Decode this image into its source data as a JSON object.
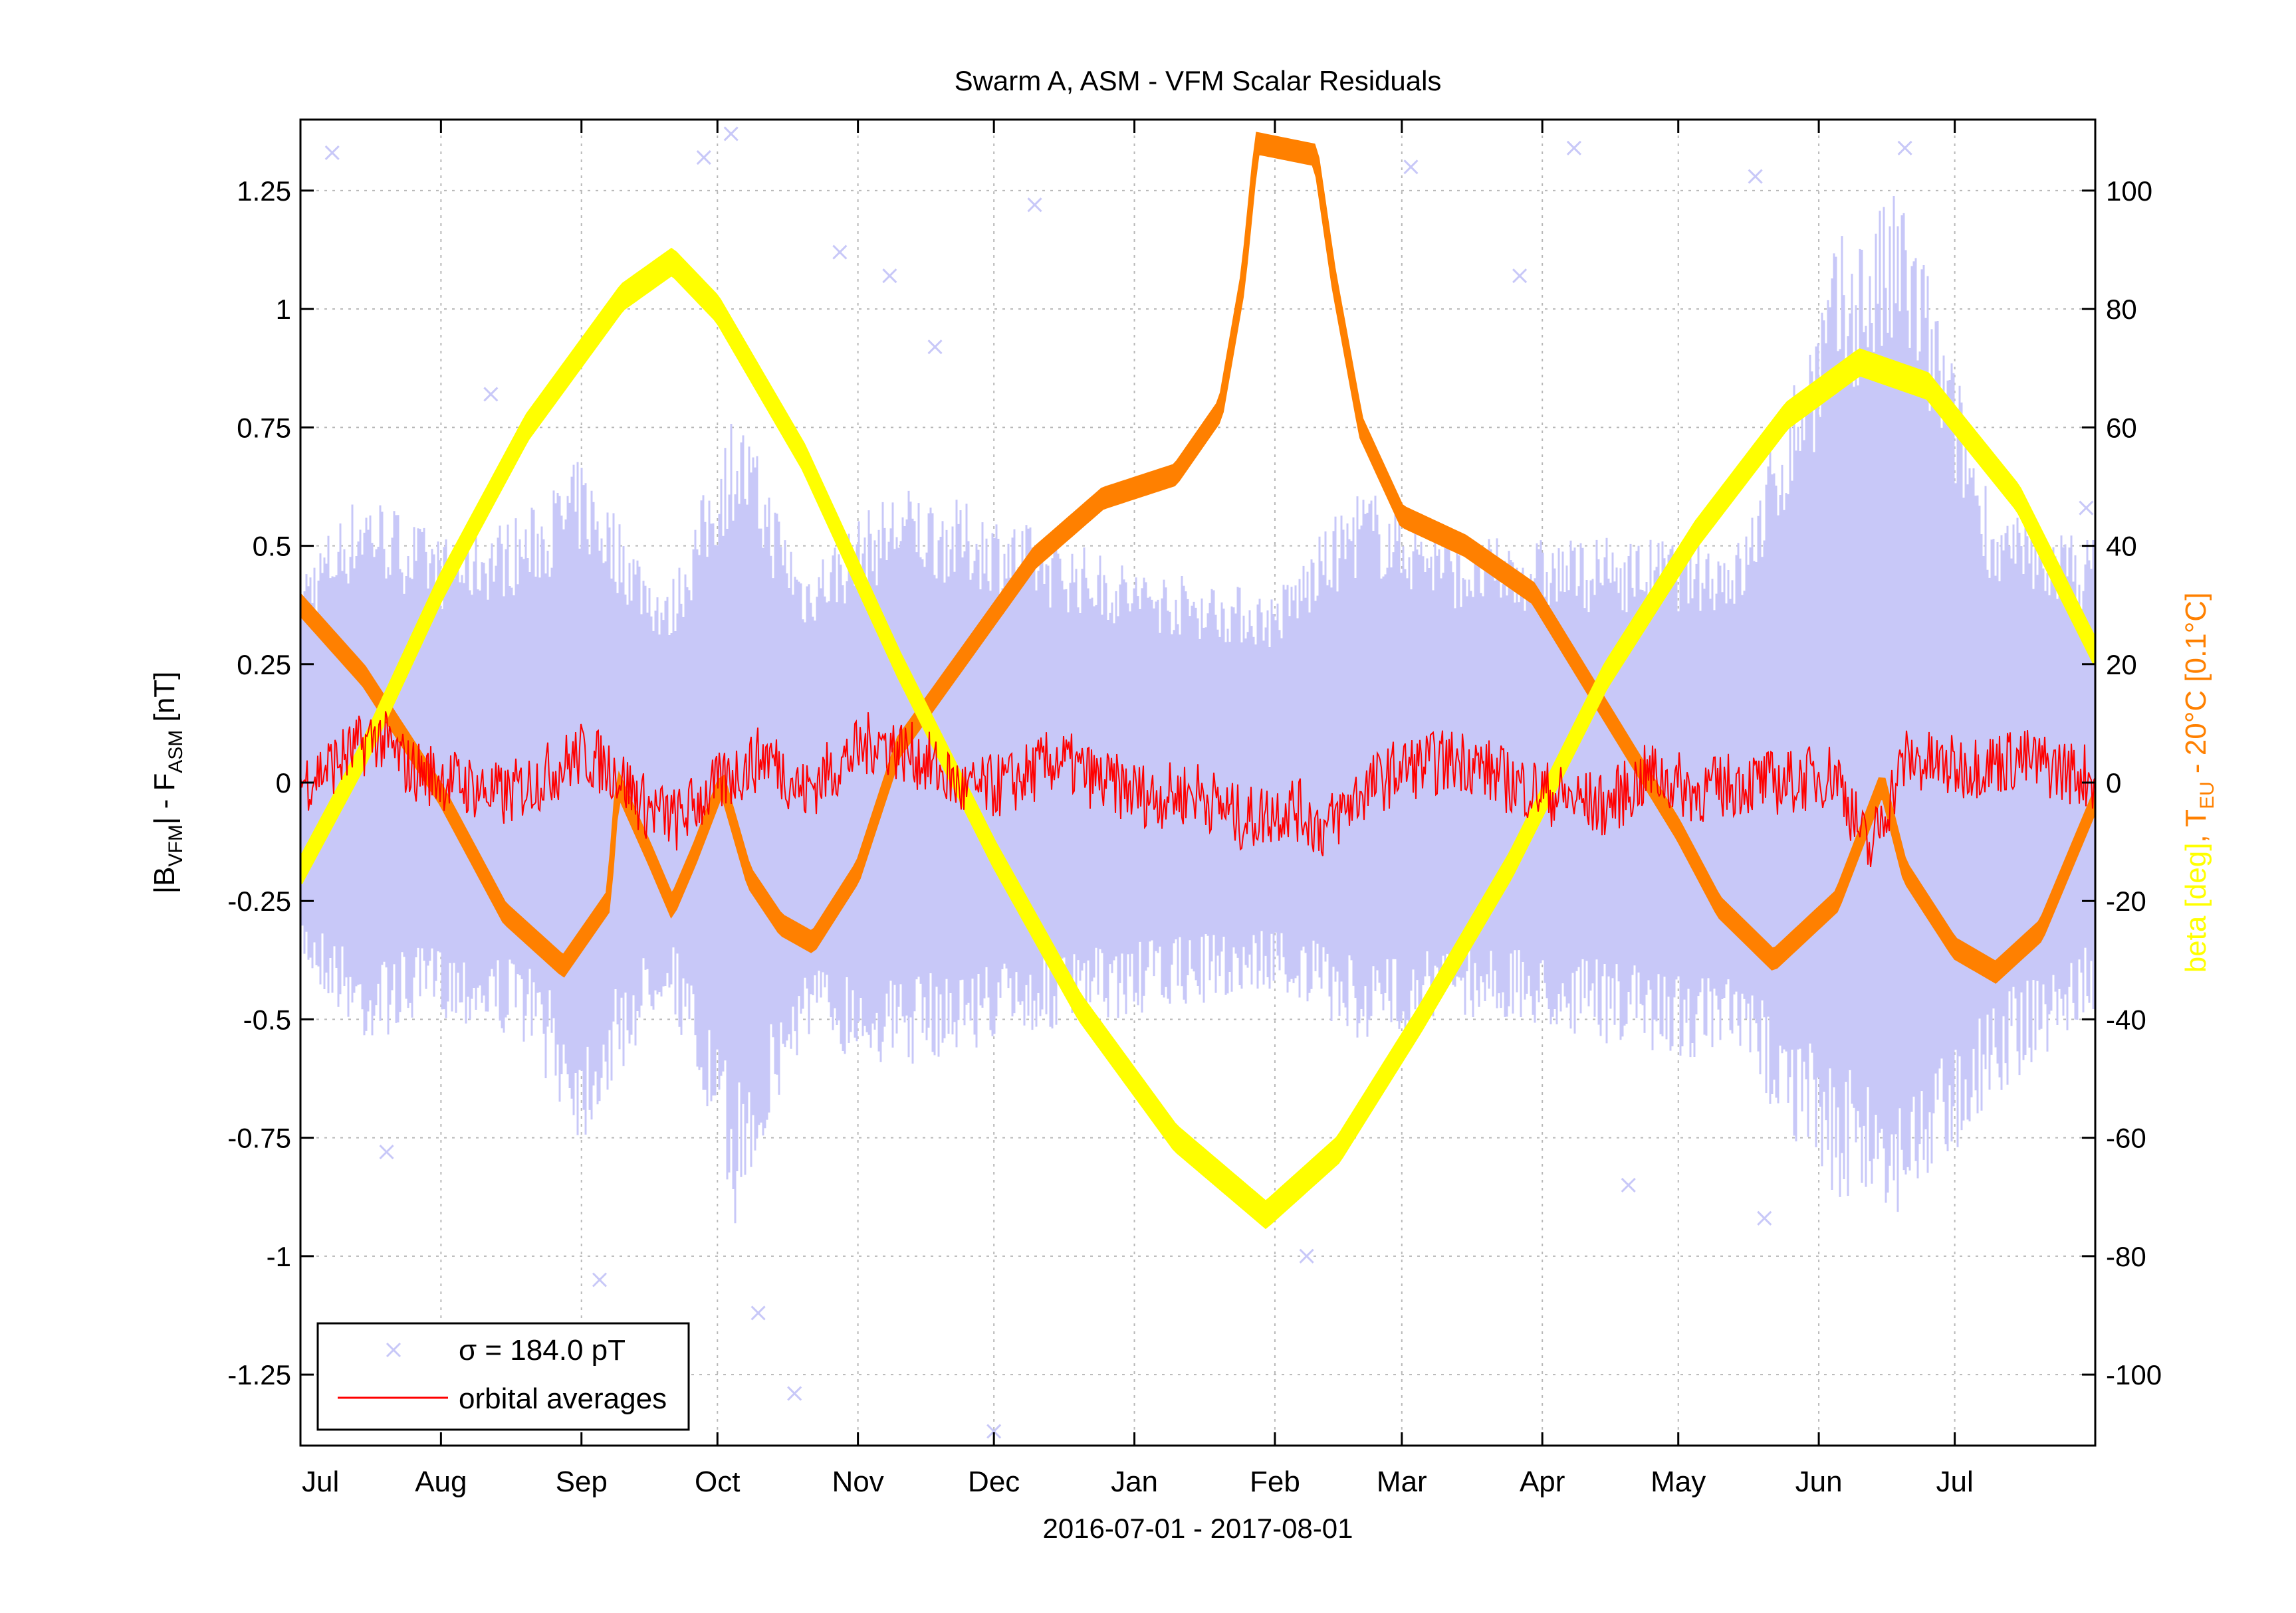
{
  "chart_data": {
    "type": "scatter",
    "title": "Swarm A, ASM - VFM Scalar Residuals",
    "xlabel": "2016-07-01 - 2017-08-01",
    "ylabel_left": "|B_VFM| - F_ASM [nT]",
    "ylabel_left_parts": {
      "main1": "|B",
      "sub1": "VFM",
      "main2": "| - F",
      "sub2": "ASM",
      "main3": " [nT]"
    },
    "ylabel_right_parts": {
      "beta": "beta [deg]",
      "sep": ", ",
      "t": "T",
      "tsub": "EU",
      "trest": " - 20°C [0.1°C]"
    },
    "x_range": [
      "2016-07-01",
      "2017-08-01"
    ],
    "x_ticks": [
      {
        "label": "Jul",
        "date": "2016-07-01"
      },
      {
        "label": "Aug",
        "date": "2016-08-01"
      },
      {
        "label": "Sep",
        "date": "2016-09-01"
      },
      {
        "label": "Oct",
        "date": "2016-10-01"
      },
      {
        "label": "Nov",
        "date": "2016-11-01"
      },
      {
        "label": "Dec",
        "date": "2016-12-01"
      },
      {
        "label": "Jan",
        "date": "2017-01-01"
      },
      {
        "label": "Feb",
        "date": "2017-02-01"
      },
      {
        "label": "Mar",
        "date": "2017-03-01"
      },
      {
        "label": "Apr",
        "date": "2017-04-01"
      },
      {
        "label": "May",
        "date": "2017-05-01"
      },
      {
        "label": "Jun",
        "date": "2017-06-01"
      },
      {
        "label": "Jul",
        "date": "2017-07-01"
      }
    ],
    "ylim_left": [
      -1.4,
      1.4
    ],
    "yticks_left": [
      "-1.25",
      "-1",
      "-0.75",
      "-0.5",
      "-0.25",
      "0",
      "0.25",
      "0.5",
      "0.75",
      "1",
      "1.25"
    ],
    "ylim_right": [
      -112,
      112
    ],
    "yticks_right": [
      "-100",
      "-80",
      "-60",
      "-40",
      "-20",
      "0",
      "20",
      "40",
      "60",
      "80",
      "100"
    ],
    "legend": {
      "placement": "bottom-left",
      "entries": [
        {
          "label": "σ = 184.0 pT",
          "marker": "x",
          "color": "#c8c8f8"
        },
        {
          "label": "orbital averages",
          "marker": "line",
          "color": "#ff0000"
        }
      ]
    },
    "series": [
      {
        "name": "σ = 184.0 pT",
        "axis": "left",
        "color": "#c8c8f8",
        "marker": "x",
        "envelope": [
          {
            "date": "2016-07-01",
            "lo": -0.35,
            "hi": 0.4
          },
          {
            "date": "2016-07-15",
            "lo": -0.5,
            "hi": 0.55
          },
          {
            "date": "2016-08-01",
            "lo": -0.45,
            "hi": 0.45
          },
          {
            "date": "2016-08-20",
            "lo": -0.5,
            "hi": 0.5
          },
          {
            "date": "2016-09-01",
            "lo": -0.7,
            "hi": 0.6
          },
          {
            "date": "2016-09-20",
            "lo": -0.4,
            "hi": 0.35
          },
          {
            "date": "2016-10-05",
            "lo": -0.85,
            "hi": 0.7
          },
          {
            "date": "2016-10-20",
            "lo": -0.5,
            "hi": 0.4
          },
          {
            "date": "2016-11-10",
            "lo": -0.55,
            "hi": 0.55
          },
          {
            "date": "2016-12-01",
            "lo": -0.5,
            "hi": 0.5
          },
          {
            "date": "2017-01-01",
            "lo": -0.45,
            "hi": 0.4
          },
          {
            "date": "2017-02-01",
            "lo": -0.4,
            "hi": 0.35
          },
          {
            "date": "2017-02-20",
            "lo": -0.5,
            "hi": 0.55
          },
          {
            "date": "2017-03-15",
            "lo": -0.45,
            "hi": 0.45
          },
          {
            "date": "2017-04-15",
            "lo": -0.5,
            "hi": 0.45
          },
          {
            "date": "2017-05-15",
            "lo": -0.55,
            "hi": 0.45
          },
          {
            "date": "2017-06-05",
            "lo": -0.8,
            "hi": 1.0
          },
          {
            "date": "2017-06-20",
            "lo": -0.85,
            "hi": 1.1
          },
          {
            "date": "2017-07-10",
            "lo": -0.6,
            "hi": 0.5
          },
          {
            "date": "2017-08-01",
            "lo": -0.45,
            "hi": 0.45
          }
        ],
        "outliers": [
          {
            "date": "2016-07-08",
            "y": 1.33
          },
          {
            "date": "2016-07-20",
            "y": -0.78
          },
          {
            "date": "2016-08-12",
            "y": 0.82
          },
          {
            "date": "2016-09-05",
            "y": -1.05
          },
          {
            "date": "2016-09-28",
            "y": 1.32
          },
          {
            "date": "2016-10-04",
            "y": 1.37
          },
          {
            "date": "2016-10-10",
            "y": -1.12
          },
          {
            "date": "2016-10-18",
            "y": -1.29
          },
          {
            "date": "2016-10-28",
            "y": 1.12
          },
          {
            "date": "2016-11-08",
            "y": 1.07
          },
          {
            "date": "2016-11-18",
            "y": 0.92
          },
          {
            "date": "2016-12-01",
            "y": -1.37
          },
          {
            "date": "2016-12-10",
            "y": 1.22
          },
          {
            "date": "2017-02-08",
            "y": -1.0
          },
          {
            "date": "2017-03-03",
            "y": 1.3
          },
          {
            "date": "2017-03-27",
            "y": 1.07
          },
          {
            "date": "2017-04-08",
            "y": 1.34
          },
          {
            "date": "2017-04-20",
            "y": -0.85
          },
          {
            "date": "2017-05-18",
            "y": 1.28
          },
          {
            "date": "2017-05-20",
            "y": -0.92
          },
          {
            "date": "2017-06-20",
            "y": 1.34
          },
          {
            "date": "2017-07-30",
            "y": 0.58
          }
        ]
      },
      {
        "name": "orbital averages",
        "axis": "left",
        "color": "#ff0000",
        "marker": "line",
        "points": [
          {
            "date": "2016-07-01",
            "y": 0.0
          },
          {
            "date": "2016-07-10",
            "y": 0.05
          },
          {
            "date": "2016-07-18",
            "y": 0.1
          },
          {
            "date": "2016-07-25",
            "y": 0.03
          },
          {
            "date": "2016-08-05",
            "y": 0.0
          },
          {
            "date": "2016-08-15",
            "y": -0.03
          },
          {
            "date": "2016-08-25",
            "y": 0.02
          },
          {
            "date": "2016-09-01",
            "y": 0.06
          },
          {
            "date": "2016-09-08",
            "y": 0.03
          },
          {
            "date": "2016-09-15",
            "y": -0.05
          },
          {
            "date": "2016-09-22",
            "y": -0.08
          },
          {
            "date": "2016-09-28",
            "y": -0.03
          },
          {
            "date": "2016-10-05",
            "y": 0.02
          },
          {
            "date": "2016-10-12",
            "y": 0.06
          },
          {
            "date": "2016-10-20",
            "y": -0.02
          },
          {
            "date": "2016-10-28",
            "y": 0.04
          },
          {
            "date": "2016-11-05",
            "y": 0.09
          },
          {
            "date": "2016-11-15",
            "y": 0.05
          },
          {
            "date": "2016-11-25",
            "y": -0.02
          },
          {
            "date": "2016-12-05",
            "y": 0.0
          },
          {
            "date": "2016-12-15",
            "y": 0.05
          },
          {
            "date": "2016-12-25",
            "y": 0.0
          },
          {
            "date": "2017-01-05",
            "y": -0.03
          },
          {
            "date": "2017-01-15",
            "y": -0.02
          },
          {
            "date": "2017-01-25",
            "y": -0.08
          },
          {
            "date": "2017-02-05",
            "y": -0.05
          },
          {
            "date": "2017-02-12",
            "y": -0.1
          },
          {
            "date": "2017-02-20",
            "y": -0.02
          },
          {
            "date": "2017-03-01",
            "y": 0.03
          },
          {
            "date": "2017-03-15",
            "y": 0.05
          },
          {
            "date": "2017-03-25",
            "y": 0.0
          },
          {
            "date": "2017-04-05",
            "y": -0.03
          },
          {
            "date": "2017-04-15",
            "y": -0.05
          },
          {
            "date": "2017-04-25",
            "y": 0.02
          },
          {
            "date": "2017-05-05",
            "y": -0.02
          },
          {
            "date": "2017-05-15",
            "y": 0.0
          },
          {
            "date": "2017-05-25",
            "y": 0.0
          },
          {
            "date": "2017-06-05",
            "y": 0.02
          },
          {
            "date": "2017-06-12",
            "y": -0.15
          },
          {
            "date": "2017-06-20",
            "y": 0.05
          },
          {
            "date": "2017-07-01",
            "y": 0.03
          },
          {
            "date": "2017-07-15",
            "y": 0.05
          },
          {
            "date": "2017-08-01",
            "y": 0.01
          }
        ]
      },
      {
        "name": "beta [deg]",
        "axis": "right",
        "color": "#ffff00",
        "marker": "x",
        "points": [
          {
            "date": "2016-07-01",
            "y": -15
          },
          {
            "date": "2016-07-15",
            "y": 5
          },
          {
            "date": "2016-08-01",
            "y": 33
          },
          {
            "date": "2016-08-20",
            "y": 60
          },
          {
            "date": "2016-09-10",
            "y": 82
          },
          {
            "date": "2016-09-21",
            "y": 88
          },
          {
            "date": "2016-10-01",
            "y": 80
          },
          {
            "date": "2016-10-20",
            "y": 55
          },
          {
            "date": "2016-11-10",
            "y": 20
          },
          {
            "date": "2016-12-01",
            "y": -12
          },
          {
            "date": "2016-12-20",
            "y": -38
          },
          {
            "date": "2017-01-10",
            "y": -60
          },
          {
            "date": "2017-01-30",
            "y": -73
          },
          {
            "date": "2017-02-15",
            "y": -62
          },
          {
            "date": "2017-03-05",
            "y": -40
          },
          {
            "date": "2017-03-25",
            "y": -14
          },
          {
            "date": "2017-04-15",
            "y": 18
          },
          {
            "date": "2017-05-05",
            "y": 42
          },
          {
            "date": "2017-05-25",
            "y": 62
          },
          {
            "date": "2017-06-10",
            "y": 71
          },
          {
            "date": "2017-06-25",
            "y": 67
          },
          {
            "date": "2017-07-15",
            "y": 48
          },
          {
            "date": "2017-08-01",
            "y": 22
          }
        ]
      },
      {
        "name": "T_EU - 20°C [0.1°C]",
        "axis": "right",
        "color": "#ff8000",
        "marker": "x",
        "points": [
          {
            "date": "2016-07-01",
            "y": 30
          },
          {
            "date": "2016-07-15",
            "y": 18
          },
          {
            "date": "2016-08-01",
            "y": -2
          },
          {
            "date": "2016-08-15",
            "y": -22
          },
          {
            "date": "2016-08-28",
            "y": -31
          },
          {
            "date": "2016-09-07",
            "y": -20
          },
          {
            "date": "2016-09-09",
            "y": 0
          },
          {
            "date": "2016-09-16",
            "y": -12
          },
          {
            "date": "2016-09-21",
            "y": -21
          },
          {
            "date": "2016-09-26",
            "y": -12
          },
          {
            "date": "2016-10-02",
            "y": 0
          },
          {
            "date": "2016-10-08",
            "y": -16
          },
          {
            "date": "2016-10-15",
            "y": -24
          },
          {
            "date": "2016-10-22",
            "y": -27
          },
          {
            "date": "2016-11-01",
            "y": -15
          },
          {
            "date": "2016-11-10",
            "y": 6
          },
          {
            "date": "2016-11-25",
            "y": 22
          },
          {
            "date": "2016-12-10",
            "y": 38
          },
          {
            "date": "2016-12-25",
            "y": 48
          },
          {
            "date": "2017-01-10",
            "y": 52
          },
          {
            "date": "2017-01-20",
            "y": 63
          },
          {
            "date": "2017-01-25",
            "y": 85
          },
          {
            "date": "2017-01-28",
            "y": 108
          },
          {
            "date": "2017-02-10",
            "y": 106
          },
          {
            "date": "2017-02-14",
            "y": 85
          },
          {
            "date": "2017-02-20",
            "y": 60
          },
          {
            "date": "2017-03-01",
            "y": 45
          },
          {
            "date": "2017-03-15",
            "y": 40
          },
          {
            "date": "2017-03-30",
            "y": 32
          },
          {
            "date": "2017-04-15",
            "y": 12
          },
          {
            "date": "2017-05-01",
            "y": -8
          },
          {
            "date": "2017-05-10",
            "y": -21
          },
          {
            "date": "2017-05-22",
            "y": -30
          },
          {
            "date": "2017-06-05",
            "y": -20
          },
          {
            "date": "2017-06-15",
            "y": 0
          },
          {
            "date": "2017-06-20",
            "y": -15
          },
          {
            "date": "2017-07-01",
            "y": -28
          },
          {
            "date": "2017-07-10",
            "y": -32
          },
          {
            "date": "2017-07-20",
            "y": -25
          },
          {
            "date": "2017-08-01",
            "y": -3
          }
        ]
      }
    ],
    "grid": true
  }
}
